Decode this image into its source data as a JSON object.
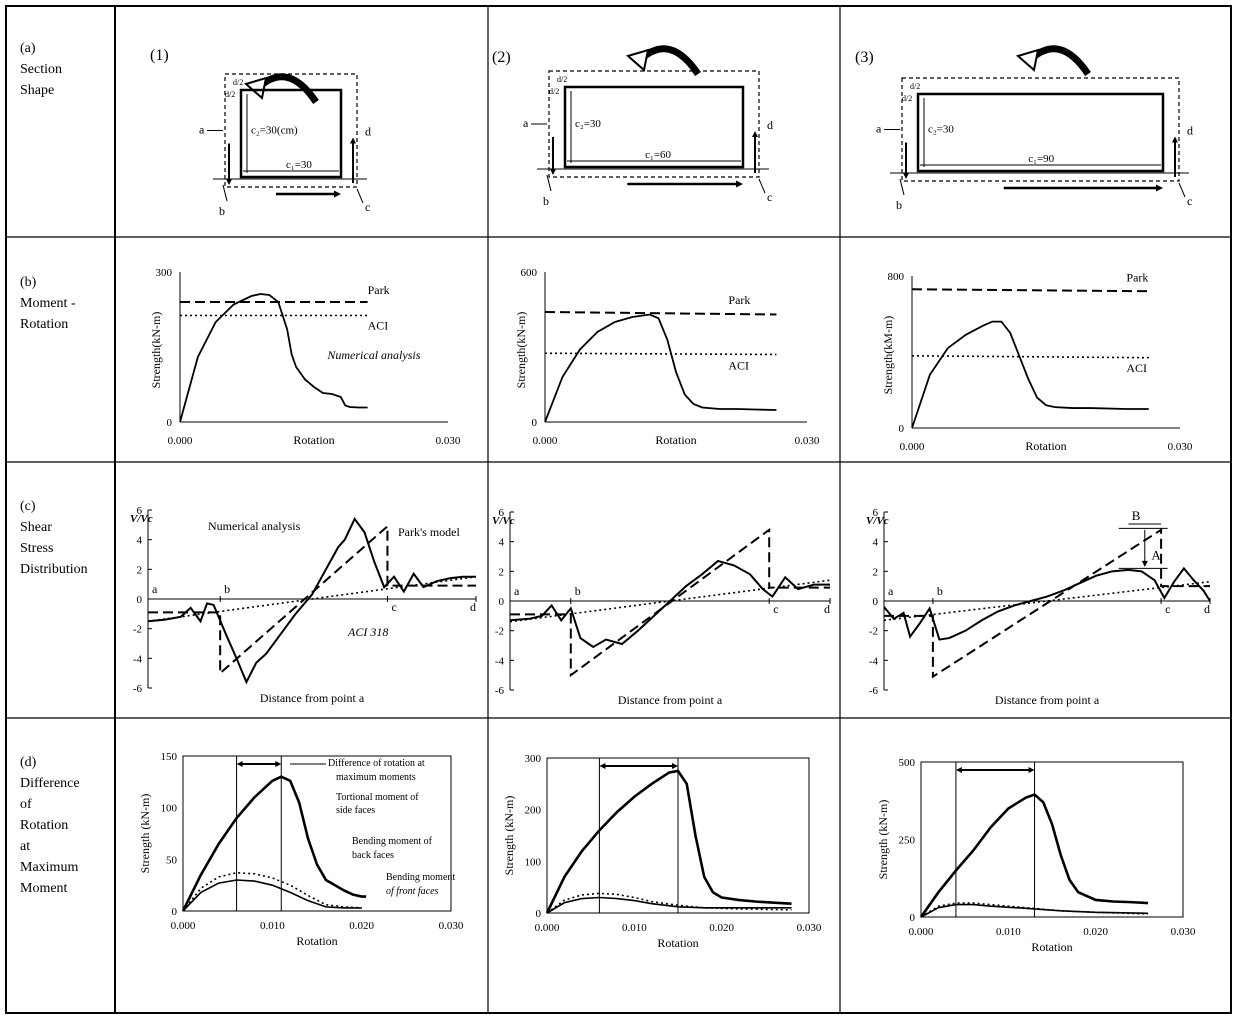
{
  "rows": [
    {
      "label": "(a)\nSection\nShape"
    },
    {
      "label": "(b)\nMoment -\nRotation"
    },
    {
      "label": "(c)\nShear\nStress\nDistribution"
    },
    {
      "label": "(d)\nDifference\nof\nRotation\nat\nMaximum\nMoment"
    }
  ],
  "columns": [
    "(1)",
    "(2)",
    "(3)"
  ],
  "sections": [
    {
      "c2": "c₂=30(cm)",
      "c1": "c₁=30",
      "d2": "d/2",
      "points": [
        "a",
        "b",
        "c",
        "d"
      ]
    },
    {
      "c2": "c₂=30",
      "c1": "c₁=60",
      "d2": "d/2",
      "points": [
        "a",
        "b",
        "c",
        "d"
      ]
    },
    {
      "c2": "c₂=30",
      "c1": "c₁=90",
      "d2": "d/2",
      "points": [
        "a",
        "b",
        "c",
        "d"
      ]
    }
  ],
  "chart_data": [
    {
      "panel": "(b)(1)",
      "type": "line",
      "xlabel": "Rotation",
      "ylabel": "Strength(kN-m)",
      "xlim": [
        0,
        0.03
      ],
      "ylim": [
        0,
        300
      ],
      "x_ticks": [
        "0.000",
        "0.030"
      ],
      "y_ticks": [
        "0",
        "300"
      ],
      "series": [
        {
          "name": "Numerical analysis",
          "style": "solid",
          "x": [
            0,
            0.002,
            0.004,
            0.006,
            0.008,
            0.009,
            0.01,
            0.011,
            0.012,
            0.0125,
            0.013,
            0.014,
            0.015,
            0.016,
            0.017,
            0.018,
            0.0185,
            0.019,
            0.02,
            0.021
          ],
          "y": [
            0,
            130,
            200,
            235,
            252,
            256,
            254,
            240,
            185,
            135,
            110,
            85,
            70,
            58,
            56,
            50,
            33,
            30,
            29,
            29
          ]
        },
        {
          "name": "Park",
          "style": "dashed",
          "x": [
            0,
            0.021
          ],
          "y": [
            240,
            240
          ]
        },
        {
          "name": "ACI",
          "style": "dotted",
          "x": [
            0,
            0.021
          ],
          "y": [
            213,
            213
          ]
        }
      ]
    },
    {
      "panel": "(b)(2)",
      "type": "line",
      "xlabel": "Rotation",
      "ylabel": "Strength(kN-m)",
      "xlim": [
        0,
        0.03
      ],
      "ylim": [
        0,
        600
      ],
      "x_ticks": [
        "0.000",
        "0.030"
      ],
      "y_ticks": [
        "0",
        "600"
      ],
      "series": [
        {
          "name": "Numerical analysis",
          "style": "solid",
          "x": [
            0,
            0.002,
            0.004,
            0.006,
            0.008,
            0.01,
            0.012,
            0.013,
            0.014,
            0.015,
            0.016,
            0.017,
            0.018,
            0.02,
            0.022,
            0.024,
            0.0265
          ],
          "y": [
            0,
            180,
            290,
            360,
            400,
            420,
            430,
            415,
            330,
            200,
            110,
            72,
            58,
            52,
            52,
            50,
            48
          ]
        },
        {
          "name": "Park",
          "style": "dashed",
          "x": [
            0,
            0.0265
          ],
          "y": [
            440,
            430
          ]
        },
        {
          "name": "ACI",
          "style": "dotted",
          "x": [
            0,
            0.0265
          ],
          "y": [
            275,
            270
          ]
        }
      ]
    },
    {
      "panel": "(b)(3)",
      "type": "line",
      "xlabel": "Rotation",
      "ylabel": "Strength(kM-m)",
      "xlim": [
        0,
        0.03
      ],
      "ylim": [
        0,
        800
      ],
      "x_ticks": [
        "0.000",
        "0.030"
      ],
      "y_ticks": [
        "0",
        "800"
      ],
      "series": [
        {
          "name": "Numerical analysis",
          "style": "solid",
          "x": [
            0,
            0.002,
            0.004,
            0.006,
            0.008,
            0.009,
            0.01,
            0.011,
            0.012,
            0.013,
            0.014,
            0.015,
            0.016,
            0.018,
            0.02,
            0.024,
            0.0265
          ],
          "y": [
            0,
            280,
            420,
            490,
            540,
            560,
            560,
            500,
            380,
            260,
            160,
            120,
            110,
            105,
            105,
            100,
            100
          ]
        },
        {
          "name": "Park",
          "style": "dashed",
          "x": [
            0,
            0.0265
          ],
          "y": [
            730,
            720
          ]
        },
        {
          "name": "ACI",
          "style": "dotted",
          "x": [
            0,
            0.0265
          ],
          "y": [
            380,
            370
          ]
        }
      ]
    },
    {
      "panel": "(c)(1)",
      "type": "line",
      "xlabel": "Distance from point a",
      "ylabel": "V/Vc",
      "xlim": [
        0,
        1
      ],
      "ylim": [
        -6,
        6
      ],
      "y_ticks": [
        "-6",
        "-4",
        "-2",
        "0",
        "2",
        "4",
        "6"
      ],
      "points": [
        "a",
        "b",
        "c",
        "d"
      ],
      "point_x": [
        0,
        0.22,
        0.73,
        1
      ],
      "series": [
        {
          "name": "Numerical analysis",
          "style": "solid",
          "x": [
            0,
            0.05,
            0.1,
            0.13,
            0.16,
            0.18,
            0.2,
            0.24,
            0.27,
            0.3,
            0.33,
            0.36,
            0.4,
            0.45,
            0.5,
            0.55,
            0.58,
            0.6,
            0.63,
            0.66,
            0.69,
            0.72,
            0.75,
            0.78,
            0.81,
            0.84,
            0.88,
            0.92,
            0.96,
            1
          ],
          "y": [
            -1.5,
            -1.4,
            -1.2,
            -0.6,
            -1.5,
            -0.3,
            -0.4,
            -2.5,
            -4,
            -5.6,
            -4.3,
            -3.7,
            -2.5,
            -1,
            0.3,
            2.3,
            3.5,
            4,
            5.4,
            4.5,
            2.5,
            0.8,
            1.5,
            0.5,
            1.7,
            0.8,
            1.2,
            1.4,
            1.5,
            1.5
          ]
        },
        {
          "name": "Park's model",
          "style": "dashed",
          "x": [
            0,
            0.22,
            0.22,
            0.73,
            0.73,
            1
          ],
          "y": [
            -0.9,
            -0.9,
            -5.0,
            4.9,
            0.9,
            0.9
          ]
        },
        {
          "name": "ACI 318",
          "style": "dotted",
          "x": [
            0,
            1
          ],
          "y": [
            -1.5,
            1.5
          ]
        }
      ]
    },
    {
      "panel": "(c)(2)",
      "type": "line",
      "xlabel": "Distance from point a",
      "ylabel": "V/Vc",
      "xlim": [
        0,
        1
      ],
      "ylim": [
        -6,
        6
      ],
      "y_ticks": [
        "-6",
        "-4",
        "-2",
        "0",
        "2",
        "4",
        "6"
      ],
      "points": [
        "a",
        "b",
        "c",
        "d"
      ],
      "point_x": [
        0,
        0.19,
        0.81,
        1
      ],
      "series": [
        {
          "name": "Numerical analysis",
          "style": "solid",
          "x": [
            0,
            0.06,
            0.1,
            0.13,
            0.16,
            0.19,
            0.22,
            0.26,
            0.3,
            0.35,
            0.4,
            0.45,
            0.5,
            0.55,
            0.6,
            0.65,
            0.7,
            0.75,
            0.79,
            0.82,
            0.86,
            0.9,
            0.95,
            1
          ],
          "y": [
            -1.3,
            -1.2,
            -1,
            -0.3,
            -1.3,
            -0.5,
            -2.5,
            -3.1,
            -2.6,
            -2.9,
            -2,
            -1,
            0,
            1,
            1.8,
            2.7,
            2.4,
            1.8,
            0.8,
            0.3,
            1.6,
            0.8,
            1.1,
            1.1
          ]
        },
        {
          "name": "Park's model",
          "style": "dashed",
          "x": [
            0,
            0.19,
            0.19,
            0.81,
            0.81,
            1
          ],
          "y": [
            -0.9,
            -0.9,
            -5.0,
            4.8,
            0.9,
            0.9
          ]
        },
        {
          "name": "ACI 318",
          "style": "dotted",
          "x": [
            0,
            1
          ],
          "y": [
            -1.4,
            1.4
          ]
        }
      ]
    },
    {
      "panel": "(c)(3)",
      "type": "line",
      "xlabel": "Distance from point a",
      "ylabel": "V/Vc",
      "xlim": [
        0,
        1
      ],
      "ylim": [
        -6,
        6
      ],
      "y_ticks": [
        "-6",
        "-4",
        "-2",
        "0",
        "2",
        "4",
        "6"
      ],
      "points": [
        "a",
        "b",
        "c",
        "d"
      ],
      "point_x": [
        0,
        0.15,
        0.85,
        1
      ],
      "annotations": [
        "A",
        "B"
      ],
      "series": [
        {
          "name": "Numerical analysis",
          "style": "solid",
          "x": [
            0,
            0.03,
            0.06,
            0.08,
            0.11,
            0.14,
            0.17,
            0.2,
            0.25,
            0.3,
            0.35,
            0.4,
            0.45,
            0.5,
            0.55,
            0.6,
            0.65,
            0.7,
            0.75,
            0.79,
            0.83,
            0.86,
            0.89,
            0.92,
            0.95,
            0.98,
            1
          ],
          "y": [
            -0.4,
            -1.2,
            -0.8,
            -2.4,
            -1.5,
            -0.5,
            -2.6,
            -2.5,
            -2,
            -1.3,
            -0.7,
            -0.3,
            0,
            0.3,
            0.7,
            1.2,
            1.7,
            2,
            2.1,
            2,
            1.4,
            0.2,
            1.3,
            2.2,
            1.4,
            0.7,
            0
          ]
        },
        {
          "name": "Park's model",
          "style": "dashed",
          "x": [
            0,
            0.15,
            0.15,
            0.85,
            0.85,
            1
          ],
          "y": [
            -1.0,
            -1.0,
            -5.1,
            4.8,
            1.0,
            1.0
          ]
        },
        {
          "name": "ACI 318",
          "style": "dotted",
          "x": [
            0,
            1
          ],
          "y": [
            -1.3,
            1.3
          ]
        }
      ]
    },
    {
      "panel": "(d)(1)",
      "type": "line",
      "xlabel": "Rotation",
      "ylabel": "Strength (kN-m)",
      "xlim": [
        0,
        0.03
      ],
      "ylim": [
        0,
        150
      ],
      "x_ticks": [
        "0.000",
        "0.010",
        "0.020",
        "0.030"
      ],
      "y_ticks": [
        "0",
        "50",
        "100",
        "150"
      ],
      "series": [
        {
          "name": "Tortional moment of side faces",
          "style": "solid-bold",
          "x": [
            0,
            0.002,
            0.004,
            0.006,
            0.008,
            0.01,
            0.011,
            0.012,
            0.013,
            0.014,
            0.015,
            0.016,
            0.017,
            0.018,
            0.019,
            0.02,
            0.0205
          ],
          "y": [
            0,
            35,
            65,
            90,
            110,
            126,
            130,
            126,
            105,
            70,
            45,
            30,
            25,
            20,
            16,
            14,
            14
          ]
        },
        {
          "name": "Bending moment of back faces",
          "style": "dotted",
          "x": [
            0,
            0.002,
            0.004,
            0.006,
            0.008,
            0.01,
            0.012,
            0.014,
            0.016,
            0.018,
            0.02
          ],
          "y": [
            0,
            22,
            33,
            37,
            36,
            32,
            25,
            15,
            6,
            4,
            3
          ]
        },
        {
          "name": "Bending moment of front faces",
          "style": "solid",
          "x": [
            0,
            0.002,
            0.004,
            0.006,
            0.008,
            0.01,
            0.012,
            0.014,
            0.016,
            0.018,
            0.02
          ],
          "y": [
            0,
            18,
            27,
            30,
            29,
            25,
            18,
            10,
            4,
            3,
            3
          ]
        }
      ],
      "annotations": [
        "Difference of rotation at maximum moments",
        "Tortional moment of side faces",
        "Bending moment of back faces",
        "Bending moment of front faces"
      ]
    },
    {
      "panel": "(d)(2)",
      "type": "line",
      "xlabel": "Rotation",
      "ylabel": "Strength (kN-m)",
      "xlim": [
        0,
        0.03
      ],
      "ylim": [
        0,
        300
      ],
      "x_ticks": [
        "0.000",
        "0.010",
        "0.020",
        "0.030"
      ],
      "y_ticks": [
        "0",
        "100",
        "200",
        "300"
      ],
      "series": [
        {
          "name": "Tortional moment of side faces",
          "style": "solid-bold",
          "x": [
            0,
            0.002,
            0.004,
            0.006,
            0.008,
            0.01,
            0.012,
            0.014,
            0.015,
            0.016,
            0.017,
            0.018,
            0.019,
            0.02,
            0.022,
            0.024,
            0.026,
            0.028
          ],
          "y": [
            0,
            70,
            120,
            160,
            195,
            225,
            250,
            272,
            275,
            250,
            150,
            70,
            40,
            30,
            25,
            22,
            20,
            18
          ]
        },
        {
          "name": "Bending moment of back faces",
          "style": "dotted",
          "x": [
            0,
            0.002,
            0.004,
            0.006,
            0.008,
            0.01,
            0.012,
            0.015,
            0.018,
            0.022,
            0.028
          ],
          "y": [
            0,
            25,
            35,
            38,
            36,
            30,
            22,
            15,
            10,
            8,
            6
          ]
        },
        {
          "name": "Bending moment of front faces",
          "style": "solid",
          "x": [
            0,
            0.002,
            0.004,
            0.006,
            0.008,
            0.01,
            0.012,
            0.015,
            0.018,
            0.022,
            0.028
          ],
          "y": [
            0,
            20,
            28,
            30,
            28,
            24,
            18,
            12,
            10,
            10,
            10
          ]
        }
      ]
    },
    {
      "panel": "(d)(3)",
      "type": "line",
      "xlabel": "Rotation",
      "ylabel": "Strength (kN-m)",
      "xlim": [
        0,
        0.03
      ],
      "ylim": [
        0,
        500
      ],
      "x_ticks": [
        "0.000",
        "0.010",
        "0.020",
        "0.030"
      ],
      "y_ticks": [
        "0",
        "250",
        "500"
      ],
      "series": [
        {
          "name": "Tortional moment of side faces",
          "style": "solid-bold",
          "x": [
            0,
            0.002,
            0.004,
            0.006,
            0.008,
            0.01,
            0.012,
            0.013,
            0.014,
            0.015,
            0.016,
            0.017,
            0.018,
            0.02,
            0.022,
            0.024,
            0.026
          ],
          "y": [
            0,
            80,
            150,
            215,
            290,
            350,
            385,
            395,
            370,
            300,
            200,
            120,
            80,
            55,
            50,
            48,
            45
          ]
        },
        {
          "name": "Bending moment of back faces",
          "style": "dotted",
          "x": [
            0,
            0.002,
            0.004,
            0.006,
            0.008,
            0.012,
            0.016,
            0.02,
            0.026
          ],
          "y": [
            0,
            35,
            45,
            45,
            40,
            30,
            20,
            15,
            10
          ]
        },
        {
          "name": "Bending moment of front faces",
          "style": "solid",
          "x": [
            0,
            0.002,
            0.004,
            0.006,
            0.008,
            0.012,
            0.016,
            0.02,
            0.026
          ],
          "y": [
            0,
            30,
            40,
            40,
            35,
            28,
            20,
            15,
            12
          ]
        }
      ]
    }
  ]
}
